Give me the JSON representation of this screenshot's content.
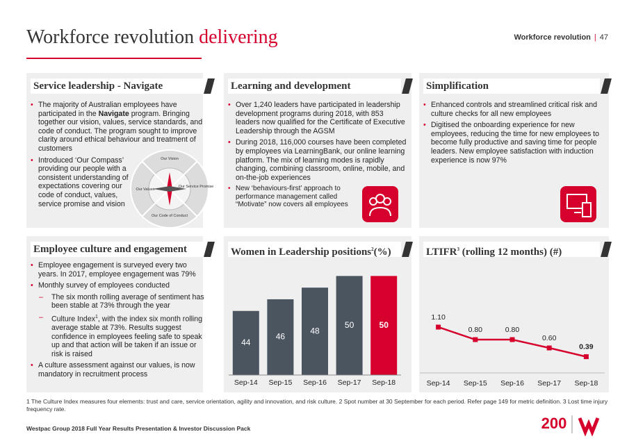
{
  "header": {
    "title_main": "Workforce revolution",
    "title_accent": "delivering",
    "section": "Workforce revolution",
    "page": "47"
  },
  "panels": [
    {
      "title": "Service leadership - Navigate",
      "bullets": [
        [
          "The majority of Australian employees have participated in the ",
          "Navigate",
          " program.  Bringing together our vision, values, service standards, and code of conduct.  The program sought to improve clarity around ethical behaviour and treatment of customers"
        ],
        [
          "Introduced ‘Our Compass’ providing our people with a consistent understanding of expectations covering our code of conduct, values, service promise and vision"
        ]
      ],
      "compass": [
        "Our Vision",
        "Our Values",
        "Our Service Promise",
        "Our Code of Conduct"
      ]
    },
    {
      "title": "Learning and development",
      "bullets": [
        "Over 1,240 leaders have participated in leadership development programs during 2018, with 853 leaders now qualified for the Certificate of Executive Leadership through the AGSM",
        "During 2018, 116,000 courses have been completed by employees via LearningBank, our online learning platform.  The mix of learning modes is rapidly changing, combining classroom, online, mobile, and on-the-job experiences",
        "New ‘behaviours-first’ approach to performance management called “Motivate” now covers all employees"
      ]
    },
    {
      "title": "Simplification",
      "bullets": [
        "Enhanced controls and streamlined critical risk and culture checks for all new employees",
        "Digitised the onboarding experience for new employees, reducing  the time for new employees to become fully productive and saving time for people leaders. New employee satisfaction with induction experience is now 97%"
      ]
    },
    {
      "title": "Employee culture and engagement",
      "bullets": [
        "Employee engagement is surveyed every two years. In 2017, employee engagement was 79%",
        "Monthly survey of employees conducted",
        "The six month rolling average of sentiment has been stable at 73% through the year",
        [
          "Culture Index",
          "1",
          ", with the index six month rolling average stable at  73%.  Results suggest confidence in employees feeling safe to speak up and that action will be taken if an issue or risk is raised"
        ],
        "A culture assessment against our values, is now mandatory in recruitment process"
      ]
    }
  ],
  "chart_data": [
    {
      "type": "bar",
      "title": "Women in Leadership positions",
      "title_note": "2",
      "title_unit": "(%)",
      "categories": [
        "Sep-14",
        "Sep-15",
        "Sep-16",
        "Sep-17",
        "Sep-18"
      ],
      "values": [
        44,
        46,
        48,
        50,
        50
      ],
      "colors": [
        "#4a5560",
        "#4a5560",
        "#4a5560",
        "#4a5560",
        "#d5002b"
      ],
      "ylim": [
        33,
        51
      ]
    },
    {
      "type": "line",
      "title": "LTIFR",
      "title_note": "3",
      "title_unit": " (rolling 12 months) (#)",
      "categories": [
        "Sep-14",
        "Sep-15",
        "Sep-16",
        "Sep-17",
        "Sep-18"
      ],
      "values": [
        1.1,
        0.8,
        0.8,
        0.6,
        0.39
      ],
      "value_labels": [
        "1.10",
        "0.80",
        "0.80",
        "0.60",
        "0.39"
      ],
      "color": "#d5002b",
      "ylim": [
        0,
        1.6
      ]
    }
  ],
  "footnote": "1 The Culture Index measures four elements: trust and care, service orientation, agility and innovation, and risk culture.  2 Spot number at 30 September for each period.  Refer page 149 for metric definition.  3 Lost time injury frequency rate.",
  "footer": "Westpac Group 2018 Full Year Results Presentation & Investor Discussion Pack",
  "logo": "200"
}
